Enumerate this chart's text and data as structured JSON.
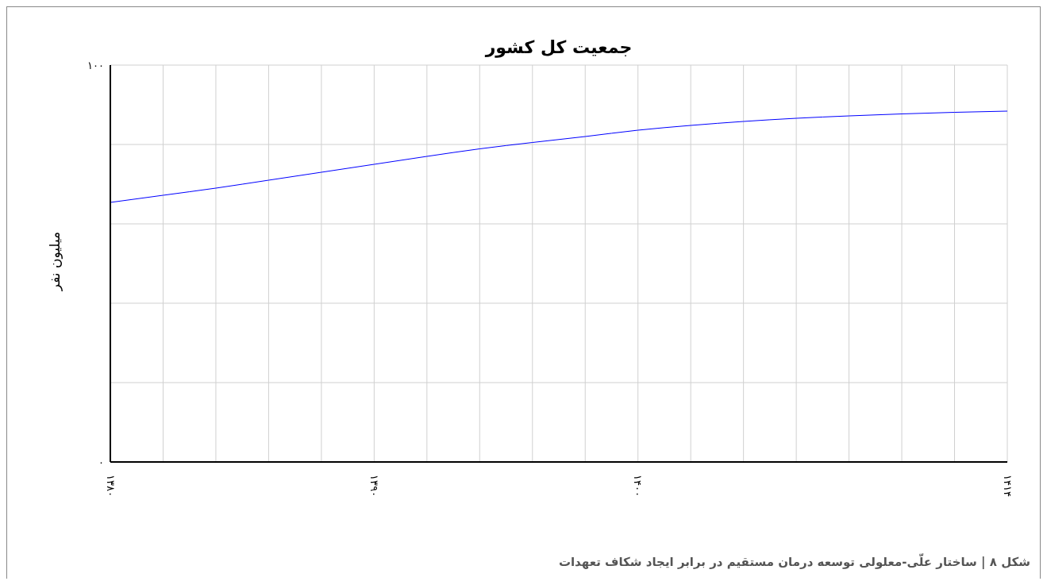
{
  "chart_data": {
    "type": "line",
    "title": "جمعیت کل کشور",
    "ylabel": "میلیون نفر",
    "annotations": [
      "شکل ۸ | ساختار علّی-معلولی توسعه درمان مستقیم در برابر ایجاد شکاف تعهدات"
    ],
    "x": [
      1380,
      1382,
      1384,
      1386,
      1388,
      1390,
      1392,
      1394,
      1396,
      1398,
      1400,
      1402,
      1404,
      1406,
      1408,
      1410,
      1412,
      1414
    ],
    "series": [
      {
        "color": "#0000ff",
        "values": [
          65.4,
          67.2,
          69.0,
          71.0,
          73.0,
          75.0,
          77.0,
          78.9,
          80.5,
          82.0,
          83.6,
          84.8,
          85.8,
          86.6,
          87.2,
          87.7,
          88.1,
          88.4
        ]
      }
    ],
    "xlim": [
      1380,
      1414
    ],
    "xticks": [
      {
        "value": 1380,
        "label": "۱۳۸۰"
      },
      {
        "value": 1382,
        "label": null
      },
      {
        "value": 1384,
        "label": null
      },
      {
        "value": 1386,
        "label": null
      },
      {
        "value": 1388,
        "label": null
      },
      {
        "value": 1390,
        "label": "۱۳۹۰"
      },
      {
        "value": 1392,
        "label": null
      },
      {
        "value": 1394,
        "label": null
      },
      {
        "value": 1396,
        "label": null
      },
      {
        "value": 1398,
        "label": null
      },
      {
        "value": 1400,
        "label": "۱۴۰۰"
      },
      {
        "value": 1402,
        "label": null
      },
      {
        "value": 1404,
        "label": null
      },
      {
        "value": 1406,
        "label": null
      },
      {
        "value": 1408,
        "label": null
      },
      {
        "value": 1410,
        "label": null
      },
      {
        "value": 1412,
        "label": null
      },
      {
        "value": 1414,
        "label": "۱۴۱۴"
      }
    ],
    "ylim": [
      0,
      100
    ],
    "yticks": [
      {
        "value": 0,
        "label": "۰"
      },
      {
        "value": 20,
        "label": null
      },
      {
        "value": 40,
        "label": null
      },
      {
        "value": 60,
        "label": null
      },
      {
        "value": 80,
        "label": null
      },
      {
        "value": 100,
        "label": "۱۰۰"
      }
    ],
    "grid": true,
    "marker": "none",
    "line_style": "solid",
    "legend": false
  }
}
